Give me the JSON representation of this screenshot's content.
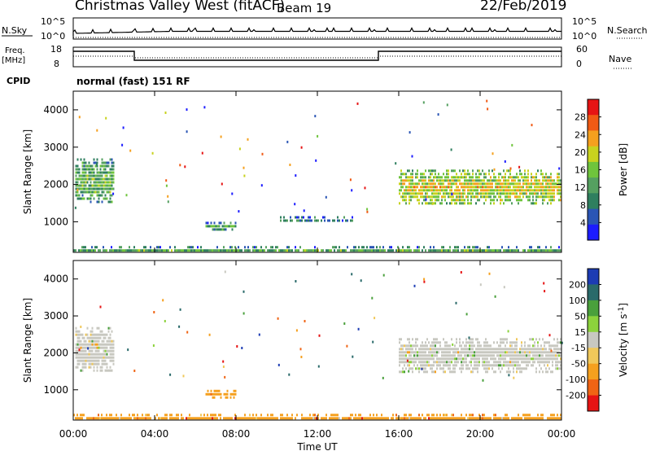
{
  "header": {
    "title": "Christmas Valley West (fitACF)",
    "beam": "Beam 19",
    "date": "22/Feb/2019"
  },
  "top_panels": {
    "nsky_label": "N.Sky",
    "nsky_ticks": [
      "10^5",
      "10^0"
    ],
    "nsearch_label": "N.Search",
    "nsearch_ticks": [
      "10^5",
      "10^0"
    ],
    "freq_label": "Freq.",
    "freq_unit": "[MHz]",
    "freq_ticks": [
      "18",
      "8"
    ],
    "nave_label": "Nave",
    "nave_ticks": [
      "60",
      "0"
    ],
    "cpid_label": "CPID",
    "cpid_text": "normal (fast) 151 RF"
  },
  "colors": {
    "power": [
      "#1c1cff",
      "#2a55b5",
      "#2f7f5f",
      "#55a060",
      "#6fc43c",
      "#c8d21e",
      "#f5a01e",
      "#f05a14",
      "#e61414"
    ],
    "velocity": [
      "#1c3cb4",
      "#2a6a6a",
      "#4aa03c",
      "#8cd23c",
      "#c8c8c0",
      "#f0c85a",
      "#f5a01e",
      "#f06414",
      "#e61414"
    ],
    "ground_scatter": "#b4b4b4"
  },
  "chart_data": [
    {
      "type": "heatmap",
      "title": "Power",
      "ylabel": "Slant Range [km]",
      "ylim": [
        180,
        4500
      ],
      "xlim": [
        "00:00",
        "00:00"
      ],
      "yticks": [
        1000,
        2000,
        3000,
        4000
      ],
      "colorbar": {
        "label": "Power [dB]",
        "ticks": [
          4,
          8,
          12,
          16,
          20,
          24,
          28
        ],
        "range": [
          0,
          32
        ]
      },
      "features": [
        {
          "t": [
            0.1,
            2.0
          ],
          "r": [
            1500,
            2700
          ],
          "value": 12
        },
        {
          "t": [
            6.5,
            8.0
          ],
          "r": [
            800,
            1000
          ],
          "value": 10
        },
        {
          "t": [
            10.0,
            14.0
          ],
          "r": [
            1050,
            1150
          ],
          "value": 8
        },
        {
          "t": [
            16.0,
            24.0
          ],
          "r": [
            1500,
            2400
          ],
          "value": 18
        },
        {
          "t": [
            0.0,
            24.0
          ],
          "r": [
            180,
            350
          ],
          "value": 10
        }
      ]
    },
    {
      "type": "heatmap",
      "title": "Velocity",
      "ylabel": "Slant Range [km]",
      "xlabel": "Time UT",
      "ylim": [
        180,
        4500
      ],
      "xticks": [
        "00:00",
        "04:00",
        "08:00",
        "12:00",
        "16:00",
        "20:00",
        "00:00"
      ],
      "yticks": [
        1000,
        2000,
        3000,
        4000
      ],
      "colorbar": {
        "label": "Velocity [m s^-1]",
        "ticks": [
          "200",
          "100",
          "50",
          "15",
          "-15",
          "-50",
          "-100",
          "-200"
        ]
      },
      "features": [
        {
          "t": [
            0.1,
            2.0
          ],
          "r": [
            1500,
            2700
          ],
          "value": 0
        },
        {
          "t": [
            6.5,
            8.0
          ],
          "r": [
            800,
            1000
          ],
          "value": -60
        },
        {
          "t": [
            16.0,
            24.0
          ],
          "r": [
            1500,
            2400
          ],
          "value": 0
        },
        {
          "t": [
            0.0,
            24.0
          ],
          "r": [
            180,
            350
          ],
          "value": -30
        }
      ]
    }
  ]
}
